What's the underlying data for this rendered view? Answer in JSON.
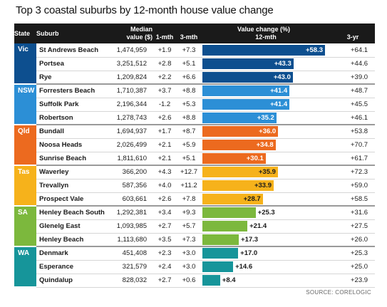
{
  "chart_data": {
    "type": "table",
    "title": "Top 3 coastal suburbs by 12-month house value change",
    "columns": {
      "state": "State",
      "suburb": "Suburb",
      "median_line1": "Median",
      "median_line2": "value ($)",
      "value_change": "Value change (%)",
      "m1": "1-mth",
      "m3": "3-mth",
      "m12": "12-mth",
      "y3": "3-yr"
    },
    "bar_scale_max": 58.3,
    "groups": [
      {
        "state": "Vic",
        "color": "#0d4f8f",
        "label_on_bar": true,
        "rows": [
          {
            "suburb": "St Andrews Beach",
            "median": "1,474,959",
            "m1": "+1.9",
            "m3": "+7.3",
            "m12_label": "+58.3",
            "m12": 58.3,
            "y3": "+64.1"
          },
          {
            "suburb": "Portsea",
            "median": "3,251,512",
            "m1": "+2.8",
            "m3": "+5.1",
            "m12_label": "+43.3",
            "m12": 43.3,
            "y3": "+44.6"
          },
          {
            "suburb": "Rye",
            "median": "1,209,824",
            "m1": "+2.2",
            "m3": "+6.6",
            "m12_label": "+43.0",
            "m12": 43.0,
            "y3": "+39.0"
          }
        ]
      },
      {
        "state": "NSW",
        "color": "#2c8fd6",
        "label_on_bar": true,
        "rows": [
          {
            "suburb": "Forresters Beach",
            "median": "1,710,387",
            "m1": "+3.7",
            "m3": "+8.8",
            "m12_label": "+41.4",
            "m12": 41.4,
            "y3": "+48.7"
          },
          {
            "suburb": "Suffolk Park",
            "median": "2,196,344",
            "m1": "-1.2",
            "m3": "+5.3",
            "m12_label": "+41.4",
            "m12": 41.4,
            "y3": "+45.5"
          },
          {
            "suburb": "Robertson",
            "median": "1,278,743",
            "m1": "+2.6",
            "m3": "+8.8",
            "m12_label": "+35.2",
            "m12": 35.2,
            "y3": "+46.1"
          }
        ]
      },
      {
        "state": "Qld",
        "color": "#ec6a1f",
        "label_on_bar": true,
        "rows": [
          {
            "suburb": "Bundall",
            "median": "1,694,937",
            "m1": "+1.7",
            "m3": "+8.7",
            "m12_label": "+36.0",
            "m12": 36.0,
            "y3": "+53.8"
          },
          {
            "suburb": "Noosa Heads",
            "median": "2,026,499",
            "m1": "+2.1",
            "m3": "+5.9",
            "m12_label": "+34.8",
            "m12": 34.8,
            "y3": "+70.7"
          },
          {
            "suburb": "Sunrise Beach",
            "median": "1,811,610",
            "m1": "+2.1",
            "m3": "+5.1",
            "m12_label": "+30.1",
            "m12": 30.1,
            "y3": "+61.7"
          }
        ]
      },
      {
        "state": "Tas",
        "color": "#f6b21b",
        "label_on_bar": true,
        "rows": [
          {
            "suburb": "Waverley",
            "median": "366,200",
            "m1": "+4.3",
            "m3": "+12.7",
            "m12_label": "+35.9",
            "m12": 35.9,
            "y3": "+72.3"
          },
          {
            "suburb": "Trevallyn",
            "median": "587,356",
            "m1": "+4.0",
            "m3": "+11.2",
            "m12_label": "+33.9",
            "m12": 33.9,
            "y3": "+59.0"
          },
          {
            "suburb": "Prospect Vale",
            "median": "603,661",
            "m1": "+2.6",
            "m3": "+7.8",
            "m12_label": "+28.7",
            "m12": 28.7,
            "y3": "+58.5"
          }
        ]
      },
      {
        "state": "SA",
        "color": "#7cb83d",
        "label_on_bar": false,
        "rows": [
          {
            "suburb": "Henley Beach South",
            "median": "1,292,381",
            "m1": "+3.4",
            "m3": "+9.3",
            "m12_label": "+25.3",
            "m12": 25.3,
            "y3": "+31.6"
          },
          {
            "suburb": "Glenelg East",
            "median": "1,093,985",
            "m1": "+2.7",
            "m3": "+5.7",
            "m12_label": "+21.4",
            "m12": 21.4,
            "y3": "+27.5"
          },
          {
            "suburb": "Henley Beach",
            "median": "1,113,680",
            "m1": "+3.5",
            "m3": "+7.3",
            "m12_label": "+17.3",
            "m12": 17.3,
            "y3": "+26.0"
          }
        ]
      },
      {
        "state": "WA",
        "color": "#16959a",
        "label_on_bar": false,
        "rows": [
          {
            "suburb": "Denmark",
            "median": "451,408",
            "m1": "+2.3",
            "m3": "+3.0",
            "m12_label": "+17.0",
            "m12": 17.0,
            "y3": "+25.3"
          },
          {
            "suburb": "Esperance",
            "median": "321,579",
            "m1": "+2.4",
            "m3": "+3.0",
            "m12_label": "+14.6",
            "m12": 14.6,
            "y3": "+25.0"
          },
          {
            "suburb": "Quindalup",
            "median": "828,032",
            "m1": "+2.7",
            "m3": "+0.6",
            "m12_label": "+8.4",
            "m12": 8.4,
            "y3": "+23.9"
          }
        ]
      }
    ],
    "source": "SOURCE: CORELOGIC"
  }
}
